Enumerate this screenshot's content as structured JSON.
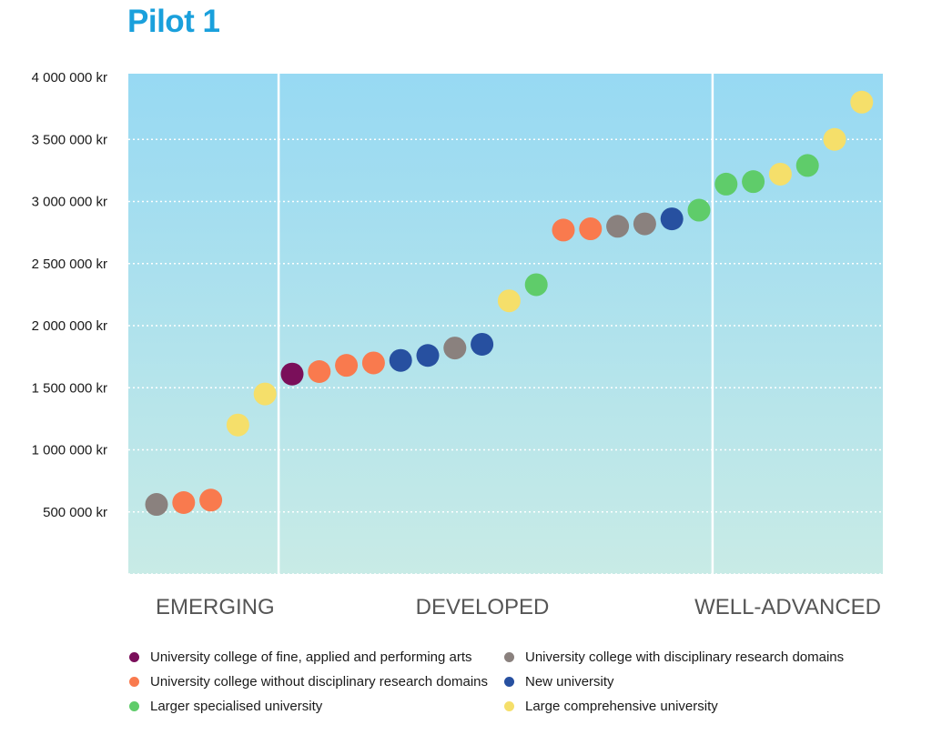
{
  "colors": {
    "title": "#1aa0dc",
    "plot_top": "#97d9f3",
    "plot_bottom": "#c8ebe6",
    "gridline": "#ffffff",
    "divider": "#ffffff",
    "phase_label": "#555555",
    "fine_arts": "#7a0f5a",
    "without_research": "#f97a4e",
    "with_research": "#8a817e",
    "new_university": "#2750a0",
    "specialised": "#5fcc6a",
    "comprehensive": "#f5df6a"
  },
  "chart_data": {
    "type": "scatter",
    "title": "Pilot 1",
    "xlabel": "",
    "ylabel": "",
    "ylim": [
      0,
      4000000
    ],
    "y_ticks": [
      500000,
      1000000,
      1500000,
      2000000,
      2500000,
      3000000,
      3500000,
      4000000
    ],
    "y_tick_labels": [
      "500 000 kr",
      "1 000 000 kr",
      "1 500 000 kr",
      "2 000 000 kr",
      "2 500 000 kr",
      "3 000 000 kr",
      "3 500 000 kr",
      "4 000 000 kr"
    ],
    "grid": true,
    "legend_placement": "bottom",
    "phases": [
      {
        "label": "EMERGING",
        "start_index": 1,
        "end_index": 5
      },
      {
        "label": "DEVELOPED",
        "start_index": 6,
        "end_index": 21
      },
      {
        "label": "WELL-ADVANCED",
        "start_index": 22,
        "end_index": 27
      }
    ],
    "categories": [
      {
        "key": "fine_arts",
        "name": "University college of fine, applied and performing arts"
      },
      {
        "key": "with_research",
        "name": "University college with disciplinary research domains"
      },
      {
        "key": "without_research",
        "name": "University college without disciplinary research domains"
      },
      {
        "key": "new_university",
        "name": "New university"
      },
      {
        "key": "specialised",
        "name": "Larger specialised university"
      },
      {
        "key": "comprehensive",
        "name": "Large comprehensive university"
      }
    ],
    "points": [
      {
        "x": 1,
        "y": 560000,
        "category": "with_research"
      },
      {
        "x": 2,
        "y": 575000,
        "category": "without_research"
      },
      {
        "x": 3,
        "y": 595000,
        "category": "without_research"
      },
      {
        "x": 4,
        "y": 1200000,
        "category": "comprehensive"
      },
      {
        "x": 5,
        "y": 1450000,
        "category": "comprehensive"
      },
      {
        "x": 6,
        "y": 1610000,
        "category": "fine_arts"
      },
      {
        "x": 7,
        "y": 1630000,
        "category": "without_research"
      },
      {
        "x": 8,
        "y": 1680000,
        "category": "without_research"
      },
      {
        "x": 9,
        "y": 1700000,
        "category": "without_research"
      },
      {
        "x": 10,
        "y": 1720000,
        "category": "new_university"
      },
      {
        "x": 11,
        "y": 1760000,
        "category": "new_university"
      },
      {
        "x": 12,
        "y": 1820000,
        "category": "with_research"
      },
      {
        "x": 13,
        "y": 1850000,
        "category": "new_university"
      },
      {
        "x": 14,
        "y": 2200000,
        "category": "comprehensive"
      },
      {
        "x": 15,
        "y": 2330000,
        "category": "specialised"
      },
      {
        "x": 16,
        "y": 2770000,
        "category": "without_research"
      },
      {
        "x": 17,
        "y": 2780000,
        "category": "without_research"
      },
      {
        "x": 18,
        "y": 2800000,
        "category": "with_research"
      },
      {
        "x": 19,
        "y": 2820000,
        "category": "with_research"
      },
      {
        "x": 20,
        "y": 2860000,
        "category": "new_university"
      },
      {
        "x": 21,
        "y": 2930000,
        "category": "specialised"
      },
      {
        "x": 22,
        "y": 3140000,
        "category": "specialised"
      },
      {
        "x": 23,
        "y": 3160000,
        "category": "specialised"
      },
      {
        "x": 24,
        "y": 3220000,
        "category": "comprehensive"
      },
      {
        "x": 25,
        "y": 3290000,
        "category": "specialised"
      },
      {
        "x": 26,
        "y": 3500000,
        "category": "comprehensive"
      },
      {
        "x": 27,
        "y": 3800000,
        "category": "comprehensive"
      }
    ]
  }
}
